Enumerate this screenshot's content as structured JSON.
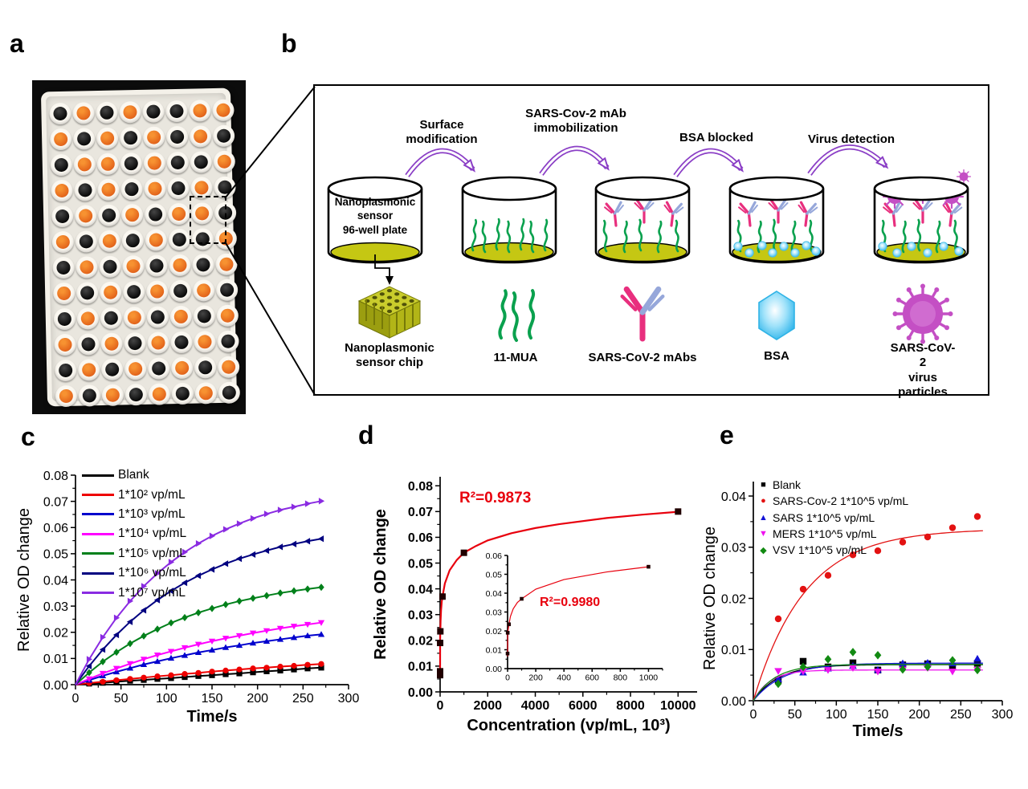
{
  "figure": {
    "panel_labels": {
      "a": "a",
      "b": "b",
      "c": "c",
      "d": "d",
      "e": "e"
    }
  },
  "panel_a": {
    "description": "photo of nanoplasmonic sensor 96-well plate",
    "wells_pattern": [
      "BOBOBBOO",
      "OBOBOBOB",
      "BOOBOBBO",
      "OBOBOBOB",
      "BOBOBOOB",
      "OBOBOBBO",
      "BOBOBOBO",
      "OBOBOBOB",
      "BOBOBOBO",
      "OBOBOBOB",
      "BOBOBOBO",
      "OBOBOBOB"
    ],
    "colors": {
      "well_orange": "#e4661c",
      "well_dark": "#1a1a1a",
      "plate": "#f4f1e9",
      "tray": "#e9e6de",
      "background": "#0c0c0c"
    }
  },
  "panel_b": {
    "step_labels": [
      "Surface\nmodification",
      "SARS-Cov-2 mAb\nimmobilization",
      "BSA blocked",
      "Virus detection"
    ],
    "well1_label": "Nanoplasmonic\nsensor\n96-well plate",
    "icon_labels": [
      "Nanoplasmonic\nsensor chip",
      "11-MUA",
      "SARS-CoV-2 mAbs",
      "BSA",
      "SARS-CoV-2\nvirus particles"
    ],
    "colors": {
      "arrow": "#8b3fc6",
      "strand": "#0aa14e",
      "antibody_pink": "#e82f7e",
      "antibody_blue": "#96a7da",
      "bsa": "#2eb4ea",
      "virus": "#c44fc4",
      "well_bottom": "#c5c713",
      "chip": "#c9cc2c"
    }
  },
  "chart_data": [
    {
      "id": "c",
      "type": "line",
      "xlabel": "Time/s",
      "ylabel": "Relative OD change",
      "xlim": [
        0,
        300
      ],
      "ylim": [
        0,
        0.08
      ],
      "xticks": [
        0,
        50,
        100,
        150,
        200,
        250,
        300
      ],
      "yticks": [
        0,
        0.01,
        0.02,
        0.03,
        0.04,
        0.05,
        0.06,
        0.07,
        0.08
      ],
      "legend_position": "top-left",
      "grid": false,
      "x": [
        0,
        15,
        30,
        45,
        60,
        75,
        90,
        105,
        120,
        135,
        150,
        165,
        180,
        195,
        210,
        225,
        240,
        255,
        270
      ],
      "series": [
        {
          "name": "Blank",
          "color": "#000000",
          "marker": "square",
          "values": [
            0,
            0.0004,
            0.0007,
            0.0011,
            0.0015,
            0.0018,
            0.0022,
            0.0025,
            0.0029,
            0.0033,
            0.0036,
            0.004,
            0.0043,
            0.0047,
            0.0051,
            0.0054,
            0.0058,
            0.0062,
            0.0065
          ]
        },
        {
          "name": "1*10² vp/mL",
          "color": "#ee0000",
          "marker": "circle",
          "values": [
            0,
            0.0006,
            0.0011,
            0.0017,
            0.0022,
            0.0027,
            0.0032,
            0.0036,
            0.0041,
            0.0045,
            0.005,
            0.0054,
            0.0058,
            0.0062,
            0.0065,
            0.0069,
            0.0072,
            0.0076,
            0.0079
          ]
        },
        {
          "name": "1*10³ vp/mL",
          "color": "#0000cd",
          "marker": "triangle-up",
          "values": [
            0,
            0.0017,
            0.0034,
            0.0049,
            0.0063,
            0.0077,
            0.0089,
            0.0101,
            0.0112,
            0.0123,
            0.0132,
            0.0142,
            0.015,
            0.0159,
            0.0166,
            0.0173,
            0.018,
            0.0187,
            0.0192
          ]
        },
        {
          "name": "1*10⁴ vp/mL",
          "color": "#ff00ff",
          "marker": "triangle-down",
          "values": [
            0,
            0.0022,
            0.0043,
            0.0062,
            0.008,
            0.0097,
            0.0113,
            0.0127,
            0.0141,
            0.0154,
            0.0166,
            0.0177,
            0.0187,
            0.0197,
            0.0206,
            0.0215,
            0.0223,
            0.023,
            0.0237
          ]
        },
        {
          "name": "1*10⁵ vp/mL",
          "color": "#00801a",
          "marker": "diamond",
          "values": [
            0,
            0.0046,
            0.0088,
            0.0124,
            0.0157,
            0.0186,
            0.0212,
            0.0236,
            0.0256,
            0.0275,
            0.0291,
            0.0306,
            0.0319,
            0.033,
            0.034,
            0.035,
            0.0358,
            0.0365,
            0.0372
          ]
        },
        {
          "name": "1*10⁶ vp/mL",
          "color": "#000080",
          "marker": "triangle-left",
          "values": [
            0,
            0.0071,
            0.0134,
            0.019,
            0.024,
            0.0284,
            0.0323,
            0.0358,
            0.0389,
            0.0416,
            0.044,
            0.0462,
            0.0481,
            0.0497,
            0.0512,
            0.0526,
            0.0537,
            0.0548,
            0.0557
          ]
        },
        {
          "name": "1*10⁷ vp/mL",
          "color": "#8a2be2",
          "marker": "triangle-right",
          "values": [
            0,
            0.0097,
            0.0181,
            0.0255,
            0.0319,
            0.0376,
            0.0425,
            0.0468,
            0.0506,
            0.0539,
            0.0568,
            0.0593,
            0.0615,
            0.0635,
            0.0652,
            0.0667,
            0.0679,
            0.0691,
            0.0701
          ]
        }
      ]
    },
    {
      "id": "d-main",
      "type": "scatter",
      "xlabel": "Concentration (vp/mL, 10³)",
      "ylabel": "Relative OD change",
      "annotation": "R²=0.9873",
      "xlim": [
        0,
        10800
      ],
      "ylim": [
        0,
        0.0835
      ],
      "xticks": [
        0,
        2000,
        4000,
        6000,
        8000,
        10000
      ],
      "yticks": [
        0,
        0.01,
        0.02,
        0.03,
        0.04,
        0.05,
        0.06,
        0.07,
        0.08
      ],
      "series": [
        {
          "name": "Langmuir fit",
          "color": "#e8000d",
          "curve_x": [
            0.05,
            0.1,
            0.2,
            0.4,
            0.7,
            1,
            2,
            4,
            7,
            10,
            20,
            40,
            70,
            100,
            200,
            400,
            700,
            1000,
            1500,
            2000,
            3000,
            4000,
            5000,
            7000,
            8500,
            10000
          ],
          "curve_y": [
            0.0065,
            0.008,
            0.0113,
            0.0146,
            0.0174,
            0.019,
            0.0204,
            0.0217,
            0.0229,
            0.0235,
            0.0276,
            0.0317,
            0.0351,
            0.037,
            0.0421,
            0.0472,
            0.0512,
            0.054,
            0.0566,
            0.0588,
            0.0616,
            0.0636,
            0.0651,
            0.0675,
            0.0688,
            0.0699
          ]
        },
        {
          "name": "data",
          "color": "#200000",
          "marker": "square",
          "line": false,
          "x": [
            0,
            0.1,
            1,
            10,
            100,
            1000,
            10000
          ],
          "values": [
            0.0065,
            0.008,
            0.019,
            0.0235,
            0.037,
            0.054,
            0.07
          ]
        }
      ]
    },
    {
      "id": "d-inset",
      "type": "scatter",
      "xlabel": "",
      "ylabel": "",
      "annotation": "R²=0.9980",
      "xlim": [
        0,
        1100
      ],
      "ylim": [
        0,
        0.06
      ],
      "xticks": [
        0,
        200,
        400,
        600,
        800,
        1000
      ],
      "yticks": [
        0,
        0.01,
        0.02,
        0.03,
        0.04,
        0.05,
        0.06
      ],
      "series": [
        {
          "name": "Langmuir fit",
          "color": "#e8000d",
          "curve_x": [
            0.05,
            0.1,
            1,
            10,
            20,
            40,
            70,
            100,
            200,
            400,
            700,
            1000
          ],
          "curve_y": [
            0.0065,
            0.008,
            0.019,
            0.0235,
            0.0276,
            0.0317,
            0.0351,
            0.037,
            0.0421,
            0.0472,
            0.0512,
            0.054
          ]
        },
        {
          "name": "data",
          "color": "#200000",
          "marker": "square",
          "line": false,
          "x": [
            0.1,
            1,
            10,
            100,
            1000
          ],
          "values": [
            0.008,
            0.019,
            0.0235,
            0.037,
            0.054
          ]
        }
      ]
    },
    {
      "id": "e",
      "type": "scatter",
      "xlabel": "Time/s",
      "ylabel": "Relative OD change",
      "xlim": [
        0,
        300
      ],
      "ylim": [
        0,
        0.04
      ],
      "xticks": [
        0,
        50,
        100,
        150,
        200,
        250,
        300
      ],
      "yticks": [
        0,
        0.01,
        0.02,
        0.03,
        0.04
      ],
      "legend_position": "top-left",
      "x": [
        30,
        60,
        90,
        120,
        150,
        180,
        210,
        240,
        270
      ],
      "series": [
        {
          "name": "Blank",
          "color": "#000000",
          "marker": "square",
          "line": false,
          "fit": {
            "A": 0.00705,
            "tau": 30
          },
          "values": [
            0.004,
            0.0077,
            0.0066,
            0.0074,
            0.006,
            0.007,
            0.0072,
            0.0066,
            0.0073
          ]
        },
        {
          "name": "SARS-Cov-2 1*10^5 vp/mL",
          "color": "#e31212",
          "marker": "circle",
          "line": false,
          "fit": {
            "A": 0.0336,
            "tau": 62
          },
          "values": [
            0.016,
            0.0218,
            0.0245,
            0.0285,
            0.0293,
            0.031,
            0.032,
            0.0338,
            0.036
          ]
        },
        {
          "name": "SARS 1*10^5 vp/mL",
          "color": "#1212d6",
          "marker": "triangle-up",
          "line": false,
          "fit": {
            "A": 0.00735,
            "tau": 36
          },
          "values": [
            0.0042,
            0.0055,
            0.0063,
            0.0068,
            0.006,
            0.0073,
            0.0074,
            0.0073,
            0.0082
          ]
        },
        {
          "name": "MERS 1*10^5 vp/mL",
          "color": "#ee12ee",
          "marker": "triangle-down",
          "line": false,
          "fit": {
            "A": 0.006,
            "tau": 20
          },
          "values": [
            0.0058,
            0.0057,
            0.006,
            0.0064,
            0.0057,
            0.0061,
            0.0064,
            0.0057,
            0.006
          ]
        },
        {
          "name": "VSV 1*10^5 vp/mL",
          "color": "#128a12",
          "marker": "diamond",
          "line": false,
          "fit": {
            "A": 0.0071,
            "tau": 26
          },
          "values": [
            0.0033,
            0.0066,
            0.0081,
            0.0095,
            0.0089,
            0.0061,
            0.0066,
            0.0079,
            0.006
          ]
        }
      ]
    }
  ]
}
